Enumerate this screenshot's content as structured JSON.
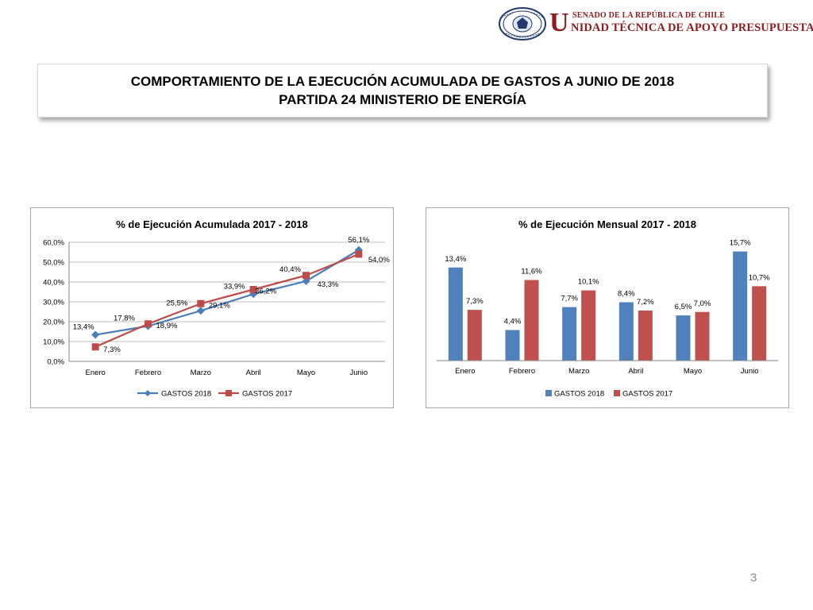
{
  "header": {
    "seal_text": "REPÚBLICA DE CHILE · SENADO",
    "logo_initial": "U",
    "logo_top": "SENADO DE LA REPÚBLICA DE CHILE",
    "logo_bottom": "NIDAD TÉCNICA DE APOYO PRESUPUESTARIO",
    "colors": {
      "brand": "#8e1b1e",
      "seal": "#1f3a6e"
    }
  },
  "title": {
    "line1": "COMPORTAMIENTO DE LA EJECUCIÓN ACUMULADA DE GASTOS A JUNIO DE 2018",
    "line2": "PARTIDA 24 MINISTERIO DE ENERGÍA"
  },
  "page_number": "3",
  "chart_data": [
    {
      "type": "line",
      "title": "% de Ejecución Acumulada 2017 - 2018",
      "categories": [
        "Enero",
        "Febrero",
        "Marzo",
        "Abril",
        "Mayo",
        "Junio"
      ],
      "xlabel": "",
      "ylabel": "",
      "ylim": [
        0,
        60
      ],
      "yticks": [
        "0,0%",
        "10,0%",
        "20,0%",
        "30,0%",
        "40,0%",
        "50,0%",
        "60,0%"
      ],
      "grid": true,
      "legend_position": "bottom",
      "series": [
        {
          "name": "GASTOS 2018",
          "color": "#4a7ebb",
          "marker": "diamond",
          "values": [
            13.4,
            17.8,
            25.5,
            33.9,
            40.4,
            56.1
          ],
          "labels": [
            "13,4%",
            "17,8%",
            "25,5%",
            "33,9%",
            "40,4%",
            "56,1%"
          ]
        },
        {
          "name": "GASTOS 2017",
          "color": "#be4b48",
          "marker": "square",
          "values": [
            7.3,
            18.9,
            29.1,
            36.2,
            43.3,
            54.0
          ],
          "labels": [
            "7,3%",
            "18,9%",
            "29,1%",
            "36,2%",
            "43,3%",
            "54,0%"
          ]
        }
      ]
    },
    {
      "type": "bar",
      "title": "% de Ejecución Mensual 2017 - 2018",
      "categories": [
        "Enero",
        "Febrero",
        "Marzo",
        "Abril",
        "Mayo",
        "Junio"
      ],
      "xlabel": "",
      "ylabel": "",
      "ylim": [
        0,
        16
      ],
      "grid": false,
      "legend_position": "bottom",
      "series": [
        {
          "name": "GASTOS 2018",
          "color": "#4f81bd",
          "values": [
            13.4,
            4.4,
            7.7,
            8.4,
            6.5,
            15.7
          ],
          "labels": [
            "13,4%",
            "4,4%",
            "7,7%",
            "8,4%",
            "6,5%",
            "15,7%"
          ]
        },
        {
          "name": "GASTOS 2017",
          "color": "#c0504d",
          "values": [
            7.3,
            11.6,
            10.1,
            7.2,
            7.0,
            10.7
          ],
          "labels": [
            "7,3%",
            "11,6%",
            "10,1%",
            "7,2%",
            "7,0%",
            "10,7%"
          ]
        }
      ]
    }
  ]
}
